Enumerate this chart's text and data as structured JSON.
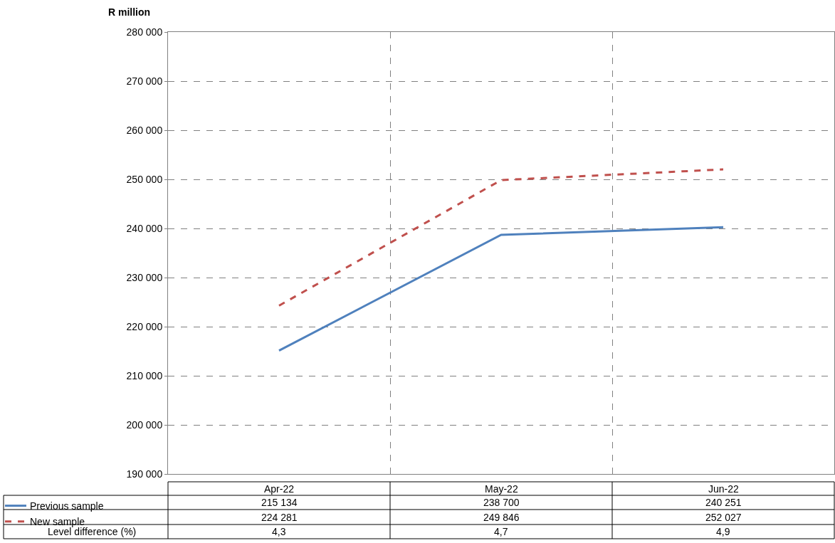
{
  "chart_data": {
    "type": "line",
    "ylabel": "R million",
    "categories": [
      "Apr-22",
      "May-22",
      "Jun-22"
    ],
    "series": [
      {
        "name": "Previous sample",
        "color": "#4f81bd",
        "line_style": "solid",
        "values": [
          215134,
          238700,
          240251
        ],
        "value_labels": [
          "215 134",
          "238 700",
          "240 251"
        ]
      },
      {
        "name": "New sample",
        "color": "#c0504d",
        "line_style": "dashed",
        "values": [
          224281,
          249846,
          252027
        ],
        "value_labels": [
          "224 281",
          "249 846",
          "252 027"
        ]
      }
    ],
    "annotations": [
      "Level difference (%)",
      "4,3",
      "4,7",
      "4,9"
    ],
    "ylim": [
      190000,
      280000
    ],
    "yticks": [
      {
        "value": 190000,
        "label": "190 000"
      },
      {
        "value": 200000,
        "label": "200 000"
      },
      {
        "value": 210000,
        "label": "210 000"
      },
      {
        "value": 220000,
        "label": "220 000"
      },
      {
        "value": 230000,
        "label": "230 000"
      },
      {
        "value": 240000,
        "label": "240 000"
      },
      {
        "value": 250000,
        "label": "250 000"
      },
      {
        "value": 260000,
        "label": "260 000"
      },
      {
        "value": 270000,
        "label": "270 000"
      },
      {
        "value": 280000,
        "label": "280 000"
      }
    ],
    "grid": true,
    "legend": "bottom left",
    "marker": "none"
  }
}
